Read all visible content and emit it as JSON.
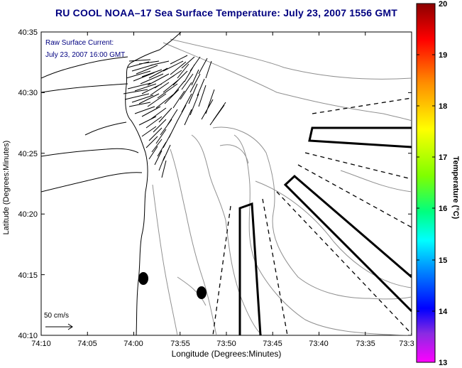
{
  "title": "RU COOL  NOAA–17  Sea Surface Temperature:  July 23, 2007 1556 GMT",
  "annotation": {
    "line1": "Raw Surface Current:",
    "line2": "July 23, 2007 16:00 GMT",
    "color": "#000080"
  },
  "axes": {
    "xlabel": "Longitude (Degrees:Minutes)",
    "ylabel": "Latitude (Degrees:Minutes)",
    "x_ticks": [
      "74:10",
      "74:05",
      "74:00",
      "73:55",
      "73:50",
      "73:45",
      "73:40",
      "73:35",
      "73:3"
    ],
    "y_ticks": [
      "40:35",
      "40:30",
      "40:25",
      "40:20",
      "40:15",
      "40:10"
    ]
  },
  "scale_bar": {
    "label": "50 cm/s"
  },
  "colorbar": {
    "label": "Temperature (°C)",
    "ticks": [
      "20",
      "19",
      "18",
      "17",
      "16",
      "15",
      "14",
      "13"
    ],
    "colors": [
      "#8b0000",
      "#ff0000",
      "#ff8c00",
      "#ffff00",
      "#7fff00",
      "#00ff7f",
      "#00ffff",
      "#0080ff",
      "#0000ff",
      "#8a2be2",
      "#ff00ff"
    ]
  }
}
